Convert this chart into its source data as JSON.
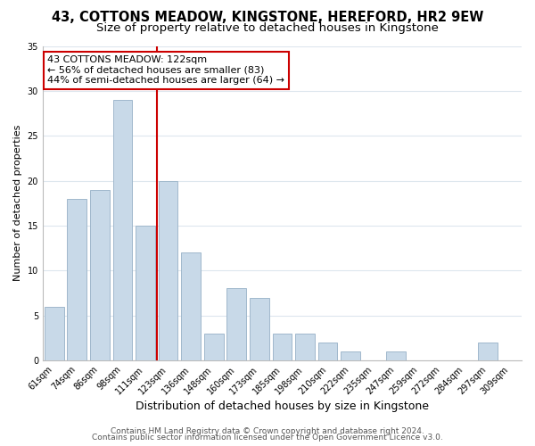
{
  "title": "43, COTTONS MEADOW, KINGSTONE, HEREFORD, HR2 9EW",
  "subtitle": "Size of property relative to detached houses in Kingstone",
  "xlabel": "Distribution of detached houses by size in Kingstone",
  "ylabel": "Number of detached properties",
  "bar_labels": [
    "61sqm",
    "74sqm",
    "86sqm",
    "98sqm",
    "111sqm",
    "123sqm",
    "136sqm",
    "148sqm",
    "160sqm",
    "173sqm",
    "185sqm",
    "198sqm",
    "210sqm",
    "222sqm",
    "235sqm",
    "247sqm",
    "259sqm",
    "272sqm",
    "284sqm",
    "297sqm",
    "309sqm"
  ],
  "bar_values": [
    6,
    18,
    19,
    29,
    15,
    20,
    12,
    3,
    8,
    7,
    3,
    3,
    2,
    1,
    0,
    1,
    0,
    0,
    0,
    2,
    0
  ],
  "bar_color": "#c8d9e8",
  "bar_edge_color": "#a0b8cc",
  "vline_color": "#cc0000",
  "annotation_title": "43 COTTONS MEADOW: 122sqm",
  "annotation_line1": "← 56% of detached houses are smaller (83)",
  "annotation_line2": "44% of semi-detached houses are larger (64) →",
  "annotation_box_color": "#ffffff",
  "annotation_box_edgecolor": "#cc0000",
  "ylim": [
    0,
    35
  ],
  "yticks": [
    0,
    5,
    10,
    15,
    20,
    25,
    30,
    35
  ],
  "footer1": "Contains HM Land Registry data © Crown copyright and database right 2024.",
  "footer2": "Contains public sector information licensed under the Open Government Licence v3.0.",
  "bg_color": "#ffffff",
  "grid_color": "#dde6ee",
  "title_fontsize": 10.5,
  "subtitle_fontsize": 9.5,
  "xlabel_fontsize": 9,
  "ylabel_fontsize": 8,
  "tick_fontsize": 7,
  "annotation_fontsize": 8,
  "footer_fontsize": 6.5
}
